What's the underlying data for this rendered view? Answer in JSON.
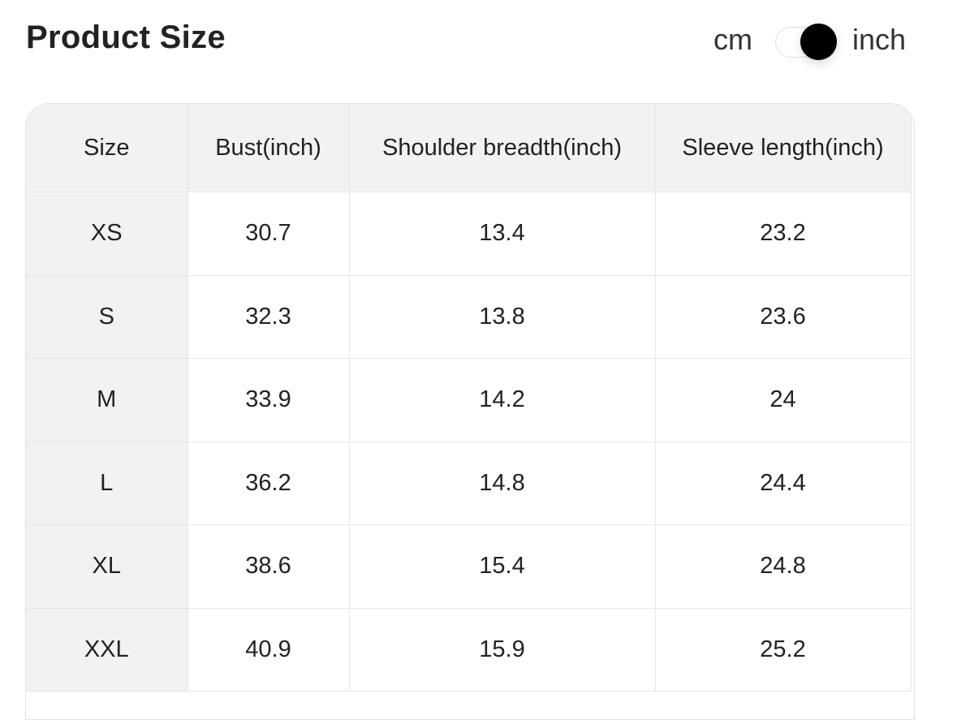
{
  "header": {
    "title": "Product Size"
  },
  "unit_toggle": {
    "left_label": "cm",
    "right_label": "inch",
    "selected": "inch"
  },
  "table": {
    "columns": [
      "Size",
      "Bust(inch)",
      "Shoulder breadth(inch)",
      "Sleeve length(inch)"
    ],
    "rows": [
      [
        "XS",
        "30.7",
        "13.4",
        "23.2"
      ],
      [
        "S",
        "32.3",
        "13.8",
        "23.6"
      ],
      [
        "M",
        "33.9",
        "14.2",
        "24"
      ],
      [
        "L",
        "36.2",
        "14.8",
        "24.4"
      ],
      [
        "XL",
        "38.6",
        "15.4",
        "24.8"
      ],
      [
        "XXL",
        "40.9",
        "15.9",
        "25.2"
      ]
    ]
  }
}
